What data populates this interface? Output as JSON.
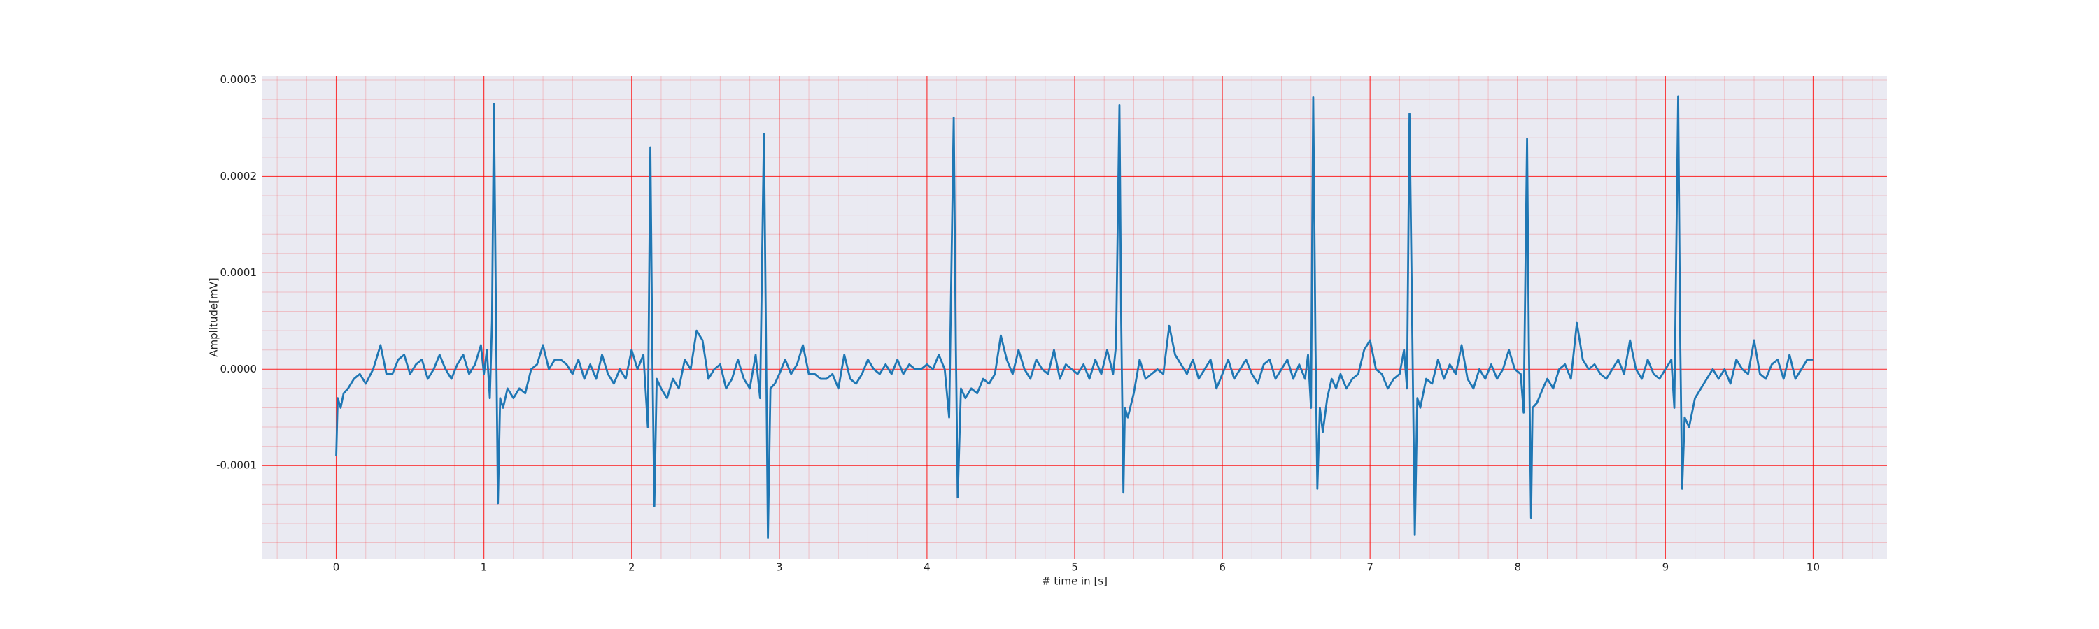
{
  "chart_data": {
    "type": "line",
    "x_label": "# time in [s]",
    "y_label": "Amplitude[mV]",
    "xlim": [
      -0.5,
      10.5
    ],
    "ylim": [
      -0.000197,
      0.000304
    ],
    "xticks": [
      0,
      1,
      2,
      3,
      4,
      5,
      6,
      7,
      8,
      9,
      10
    ],
    "yticks": [
      {
        "value": -0.0001,
        "label": "-0.0001"
      },
      {
        "value": 0,
        "label": "0.0000"
      },
      {
        "value": 0.0001,
        "label": "0.0001"
      },
      {
        "value": 0.0002,
        "label": "0.0002"
      },
      {
        "value": 0.0003,
        "label": "0.0003"
      }
    ],
    "grid": true,
    "minor_grid": true,
    "grid_color": "#ff0000",
    "background": "#eaeaf2",
    "x": [
      0,
      0.01,
      0.03,
      0.05,
      0.08,
      0.12,
      0.16,
      0.2,
      0.25,
      0.3,
      0.34,
      0.38,
      0.42,
      0.46,
      0.5,
      0.54,
      0.58,
      0.62,
      0.66,
      0.7,
      0.74,
      0.78,
      0.82,
      0.86,
      0.9,
      0.94,
      0.98,
      1.0,
      1.02,
      1.04,
      1.055,
      1.068,
      1.082,
      1.095,
      1.11,
      1.13,
      1.16,
      1.2,
      1.24,
      1.28,
      1.32,
      1.36,
      1.4,
      1.44,
      1.48,
      1.52,
      1.56,
      1.6,
      1.64,
      1.68,
      1.72,
      1.76,
      1.8,
      1.84,
      1.88,
      1.92,
      1.96,
      2.0,
      2.04,
      2.08,
      2.11,
      2.127,
      2.14,
      2.154,
      2.17,
      2.2,
      2.24,
      2.28,
      2.32,
      2.36,
      2.4,
      2.44,
      2.48,
      2.52,
      2.56,
      2.6,
      2.64,
      2.68,
      2.72,
      2.76,
      2.8,
      2.84,
      2.87,
      2.896,
      2.91,
      2.923,
      2.94,
      2.97,
      3.0,
      3.04,
      3.08,
      3.12,
      3.16,
      3.2,
      3.24,
      3.28,
      3.32,
      3.36,
      3.4,
      3.44,
      3.48,
      3.52,
      3.56,
      3.6,
      3.64,
      3.68,
      3.72,
      3.76,
      3.8,
      3.84,
      3.88,
      3.92,
      3.96,
      4.0,
      4.04,
      4.08,
      4.12,
      4.15,
      4.181,
      4.195,
      4.208,
      4.23,
      4.26,
      4.3,
      4.34,
      4.38,
      4.42,
      4.46,
      4.5,
      4.54,
      4.58,
      4.62,
      4.66,
      4.7,
      4.74,
      4.78,
      4.82,
      4.86,
      4.9,
      4.94,
      4.98,
      5.02,
      5.06,
      5.1,
      5.14,
      5.18,
      5.22,
      5.26,
      5.28,
      5.303,
      5.315,
      5.33,
      5.34,
      5.36,
      5.4,
      5.44,
      5.48,
      5.52,
      5.56,
      5.6,
      5.64,
      5.68,
      5.72,
      5.76,
      5.8,
      5.84,
      5.88,
      5.92,
      5.96,
      6.0,
      6.04,
      6.08,
      6.12,
      6.16,
      6.2,
      6.24,
      6.28,
      6.32,
      6.36,
      6.4,
      6.44,
      6.48,
      6.52,
      6.56,
      6.58,
      6.6,
      6.615,
      6.63,
      6.643,
      6.66,
      6.68,
      6.71,
      6.74,
      6.77,
      6.8,
      6.84,
      6.88,
      6.92,
      6.96,
      7.0,
      7.04,
      7.08,
      7.12,
      7.16,
      7.2,
      7.23,
      7.25,
      7.267,
      7.285,
      7.303,
      7.32,
      7.34,
      7.38,
      7.42,
      7.46,
      7.5,
      7.54,
      7.58,
      7.62,
      7.66,
      7.7,
      7.74,
      7.78,
      7.82,
      7.86,
      7.9,
      7.94,
      7.98,
      8.02,
      8.04,
      8.063,
      8.075,
      8.09,
      8.1,
      8.13,
      8.17,
      8.2,
      8.24,
      8.28,
      8.32,
      8.36,
      8.4,
      8.44,
      8.48,
      8.52,
      8.56,
      8.6,
      8.64,
      8.68,
      8.72,
      8.76,
      8.8,
      8.84,
      8.88,
      8.92,
      8.96,
      9.0,
      9.04,
      9.06,
      9.086,
      9.1,
      9.113,
      9.13,
      9.16,
      9.2,
      9.24,
      9.28,
      9.32,
      9.36,
      9.4,
      9.44,
      9.48,
      9.52,
      9.56,
      9.6,
      9.64,
      9.68,
      9.72,
      9.76,
      9.8,
      9.84,
      9.88,
      9.92,
      9.96,
      10.0
    ],
    "series": [
      {
        "color": "#1f77b4",
        "values": [
          -9e-05,
          -3e-05,
          -4e-05,
          -2.5e-05,
          -2e-05,
          -1e-05,
          -5e-06,
          -1.5e-05,
          0,
          2.5e-05,
          -5e-06,
          -5e-06,
          1e-05,
          1.5e-05,
          -5e-06,
          5e-06,
          1e-05,
          -1e-05,
          0,
          1.5e-05,
          0,
          -1e-05,
          5e-06,
          1.5e-05,
          -5e-06,
          5e-06,
          2.5e-05,
          -5e-06,
          2e-05,
          -3e-05,
          5e-05,
          0.000275,
          5e-05,
          -0.000139,
          -3e-05,
          -4e-05,
          -2e-05,
          -3e-05,
          -2e-05,
          -2.5e-05,
          0,
          5e-06,
          2.5e-05,
          0,
          1e-05,
          1e-05,
          5e-06,
          -5e-06,
          1e-05,
          -1e-05,
          5e-06,
          -1e-05,
          1.5e-05,
          -5e-06,
          -1.5e-05,
          0,
          -1e-05,
          2e-05,
          0,
          1.5e-05,
          -6e-05,
          0.00023,
          2e-05,
          -0.000142,
          -1e-05,
          -2e-05,
          -3e-05,
          -1e-05,
          -2e-05,
          1e-05,
          0,
          4e-05,
          3e-05,
          -1e-05,
          0,
          5e-06,
          -2e-05,
          -1e-05,
          1e-05,
          -1e-05,
          -2e-05,
          1.5e-05,
          -3e-05,
          0.000244,
          3e-05,
          -0.000175,
          -2e-05,
          -1.5e-05,
          -5e-06,
          1e-05,
          -5e-06,
          5e-06,
          2.5e-05,
          -5e-06,
          -5e-06,
          -1e-05,
          -1e-05,
          -5e-06,
          -2e-05,
          1.5e-05,
          -1e-05,
          -1.5e-05,
          -5e-06,
          1e-05,
          0,
          -5e-06,
          5e-06,
          -5e-06,
          1e-05,
          -5e-06,
          5e-06,
          0,
          0,
          5e-06,
          0,
          1.5e-05,
          0,
          -5e-05,
          0.000261,
          3e-05,
          -0.000133,
          -2e-05,
          -3e-05,
          -2e-05,
          -2.5e-05,
          -1e-05,
          -1.5e-05,
          -5e-06,
          3.5e-05,
          1e-05,
          -5e-06,
          2e-05,
          0,
          -1e-05,
          1e-05,
          0,
          -5e-06,
          2e-05,
          -1e-05,
          5e-06,
          0,
          -5e-06,
          5e-06,
          -1e-05,
          1e-05,
          -5e-06,
          2e-05,
          -5e-06,
          2.5e-05,
          0.000274,
          5e-05,
          -0.000128,
          -4e-05,
          -5e-05,
          -2.5e-05,
          1e-05,
          -1e-05,
          -5e-06,
          0,
          -5e-06,
          4.5e-05,
          1.5e-05,
          5e-06,
          -5e-06,
          1e-05,
          -1e-05,
          0,
          1e-05,
          -2e-05,
          -5e-06,
          1e-05,
          -1e-05,
          0,
          1e-05,
          -5e-06,
          -1.5e-05,
          5e-06,
          1e-05,
          -1e-05,
          0,
          1e-05,
          -1e-05,
          5e-06,
          -1e-05,
          1.5e-05,
          -4e-05,
          0.000282,
          3e-05,
          -0.000124,
          -4e-05,
          -6.5e-05,
          -3e-05,
          -1e-05,
          -2e-05,
          -5e-06,
          -2e-05,
          -1e-05,
          -5e-06,
          2e-05,
          3e-05,
          0,
          -5e-06,
          -2e-05,
          -1e-05,
          -5e-06,
          2e-05,
          -2e-05,
          0.000265,
          5e-05,
          -0.000172,
          -3e-05,
          -4e-05,
          -1e-05,
          -1.5e-05,
          1e-05,
          -1e-05,
          5e-06,
          -5e-06,
          2.5e-05,
          -1e-05,
          -2e-05,
          0,
          -1e-05,
          5e-06,
          -1e-05,
          0,
          2e-05,
          0,
          -5e-06,
          -4.5e-05,
          0.000239,
          3e-05,
          -0.000154,
          -4e-05,
          -3.5e-05,
          -2e-05,
          -1e-05,
          -2e-05,
          0,
          5e-06,
          -1e-05,
          4.8e-05,
          1e-05,
          0,
          5e-06,
          -5e-06,
          -1e-05,
          0,
          1e-05,
          -5e-06,
          3e-05,
          0,
          -1e-05,
          1e-05,
          -5e-06,
          -1e-05,
          0,
          1e-05,
          -4e-05,
          0.000283,
          3e-05,
          -0.000124,
          -5e-05,
          -6e-05,
          -3e-05,
          -2e-05,
          -1e-05,
          0,
          -1e-05,
          0,
          -1.5e-05,
          1e-05,
          0,
          -5e-06,
          3e-05,
          -5e-06,
          -1e-05,
          5e-06,
          1e-05,
          -1e-05,
          1.5e-05,
          -1e-05,
          0,
          1e-05,
          1e-05
        ]
      }
    ]
  }
}
